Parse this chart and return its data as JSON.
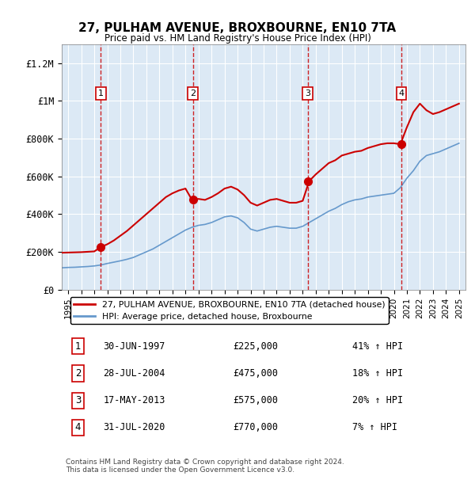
{
  "title": "27, PULHAM AVENUE, BROXBOURNE, EN10 7TA",
  "subtitle": "Price paid vs. HM Land Registry's House Price Index (HPI)",
  "bg_color": "#dce9f5",
  "plot_bg_color": "#dce9f5",
  "transactions": [
    {
      "num": 1,
      "date": "1997-06-30",
      "price": 225000,
      "pct": "41%",
      "x": 1997.5
    },
    {
      "num": 2,
      "date": "2004-07-28",
      "price": 475000,
      "pct": "18%",
      "x": 2004.58
    },
    {
      "num": 3,
      "date": "2013-05-17",
      "price": 575000,
      "pct": "20%",
      "x": 2013.38
    },
    {
      "num": 4,
      "date": "2020-07-31",
      "price": 770000,
      "pct": "7%",
      "x": 2020.58
    }
  ],
  "hpi_line_color": "#6699cc",
  "price_line_color": "#cc0000",
  "dashed_line_color": "#cc0000",
  "ylabel": "",
  "ylim": [
    0,
    1300000
  ],
  "yticks": [
    0,
    200000,
    400000,
    600000,
    800000,
    1000000,
    1200000
  ],
  "ytick_labels": [
    "£0",
    "£200K",
    "£400K",
    "£600K",
    "£800K",
    "£1M",
    "£1.2M"
  ],
  "xlim_start": 1994.5,
  "xlim_end": 2025.5,
  "xticks": [
    1995,
    1996,
    1997,
    1998,
    1999,
    2000,
    2001,
    2002,
    2003,
    2004,
    2005,
    2006,
    2007,
    2008,
    2009,
    2010,
    2011,
    2012,
    2013,
    2014,
    2015,
    2016,
    2017,
    2018,
    2019,
    2020,
    2021,
    2022,
    2023,
    2024,
    2025
  ],
  "footer": "Contains HM Land Registry data © Crown copyright and database right 2024.\nThis data is licensed under the Open Government Licence v3.0.",
  "legend_label1": "27, PULHAM AVENUE, BROXBOURNE, EN10 7TA (detached house)",
  "legend_label2": "HPI: Average price, detached house, Broxbourne",
  "table_rows": [
    {
      "num": 1,
      "date": "30-JUN-1997",
      "price": "£225,000",
      "pct": "41% ↑ HPI"
    },
    {
      "num": 2,
      "date": "28-JUL-2004",
      "price": "£475,000",
      "pct": "18% ↑ HPI"
    },
    {
      "num": 3,
      "date": "17-MAY-2013",
      "price": "£575,000",
      "pct": "20% ↑ HPI"
    },
    {
      "num": 4,
      "date": "31-JUL-2020",
      "price": "£770,000",
      "pct": "7% ↑ HPI"
    }
  ],
  "hpi_data_x": [
    1994.5,
    1995.0,
    1995.5,
    1996.0,
    1996.5,
    1997.0,
    1997.5,
    1998.0,
    1998.5,
    1999.0,
    1999.5,
    2000.0,
    2000.5,
    2001.0,
    2001.5,
    2002.0,
    2002.5,
    2003.0,
    2003.5,
    2004.0,
    2004.5,
    2005.0,
    2005.5,
    2006.0,
    2006.5,
    2007.0,
    2007.5,
    2008.0,
    2008.5,
    2009.0,
    2009.5,
    2010.0,
    2010.5,
    2011.0,
    2011.5,
    2012.0,
    2012.5,
    2013.0,
    2013.5,
    2014.0,
    2014.5,
    2015.0,
    2015.5,
    2016.0,
    2016.5,
    2017.0,
    2017.5,
    2018.0,
    2018.5,
    2019.0,
    2019.5,
    2020.0,
    2020.5,
    2021.0,
    2021.5,
    2022.0,
    2022.5,
    2023.0,
    2023.5,
    2024.0,
    2024.5,
    2025.0
  ],
  "hpi_data_y": [
    115000,
    117000,
    118000,
    120000,
    122000,
    125000,
    130000,
    138000,
    145000,
    152000,
    160000,
    170000,
    185000,
    200000,
    215000,
    235000,
    255000,
    275000,
    295000,
    315000,
    330000,
    340000,
    345000,
    355000,
    370000,
    385000,
    390000,
    380000,
    355000,
    320000,
    310000,
    320000,
    330000,
    335000,
    330000,
    325000,
    325000,
    335000,
    355000,
    375000,
    395000,
    415000,
    430000,
    450000,
    465000,
    475000,
    480000,
    490000,
    495000,
    500000,
    505000,
    510000,
    540000,
    590000,
    630000,
    680000,
    710000,
    720000,
    730000,
    745000,
    760000,
    775000
  ],
  "price_data_x": [
    1994.5,
    1995.0,
    1995.5,
    1996.0,
    1996.5,
    1997.0,
    1997.5,
    1998.0,
    1998.5,
    1999.0,
    1999.5,
    2000.0,
    2000.5,
    2001.0,
    2001.5,
    2002.0,
    2002.5,
    2003.0,
    2003.5,
    2004.0,
    2004.5,
    2005.0,
    2005.5,
    2006.0,
    2006.5,
    2007.0,
    2007.5,
    2008.0,
    2008.5,
    2009.0,
    2009.5,
    2010.0,
    2010.5,
    2011.0,
    2011.5,
    2012.0,
    2012.5,
    2013.0,
    2013.5,
    2014.0,
    2014.5,
    2015.0,
    2015.5,
    2016.0,
    2016.5,
    2017.0,
    2017.5,
    2018.0,
    2018.5,
    2019.0,
    2019.5,
    2020.0,
    2020.5,
    2021.0,
    2021.5,
    2022.0,
    2022.5,
    2023.0,
    2023.5,
    2024.0,
    2024.5,
    2025.0
  ],
  "price_data_y": [
    195000,
    196000,
    197000,
    198000,
    200000,
    202000,
    225000,
    240000,
    260000,
    285000,
    310000,
    340000,
    370000,
    400000,
    430000,
    460000,
    490000,
    510000,
    525000,
    535000,
    475000,
    480000,
    475000,
    490000,
    510000,
    535000,
    545000,
    530000,
    500000,
    460000,
    445000,
    460000,
    475000,
    480000,
    470000,
    460000,
    460000,
    470000,
    575000,
    610000,
    640000,
    670000,
    685000,
    710000,
    720000,
    730000,
    735000,
    750000,
    760000,
    770000,
    775000,
    775000,
    770000,
    860000,
    940000,
    985000,
    950000,
    930000,
    940000,
    955000,
    970000,
    985000
  ]
}
